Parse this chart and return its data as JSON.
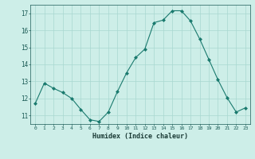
{
  "x": [
    0,
    1,
    2,
    3,
    4,
    5,
    6,
    7,
    8,
    9,
    10,
    11,
    12,
    13,
    14,
    15,
    16,
    17,
    18,
    19,
    20,
    21,
    22,
    23
  ],
  "y": [
    11.7,
    12.9,
    12.6,
    12.35,
    12.0,
    11.35,
    10.75,
    10.65,
    11.2,
    12.4,
    13.5,
    14.4,
    14.9,
    16.45,
    16.6,
    17.15,
    17.15,
    16.55,
    15.5,
    14.3,
    13.1,
    12.05,
    11.2,
    11.45
  ],
  "xlabel": "Humidex (Indice chaleur)",
  "xlim": [
    -0.5,
    23.5
  ],
  "ylim": [
    10.5,
    17.5
  ],
  "yticks": [
    11,
    12,
    13,
    14,
    15,
    16,
    17
  ],
  "xticks": [
    0,
    1,
    2,
    3,
    4,
    5,
    6,
    7,
    8,
    9,
    10,
    11,
    12,
    13,
    14,
    15,
    16,
    17,
    18,
    19,
    20,
    21,
    22,
    23
  ],
  "line_color": "#1a7a6e",
  "marker_color": "#1a7a6e",
  "bg_color": "#cdeee8",
  "grid_color": "#a8d8d0",
  "tick_label_color": "#1a5a55",
  "xlabel_color": "#1a3a35"
}
